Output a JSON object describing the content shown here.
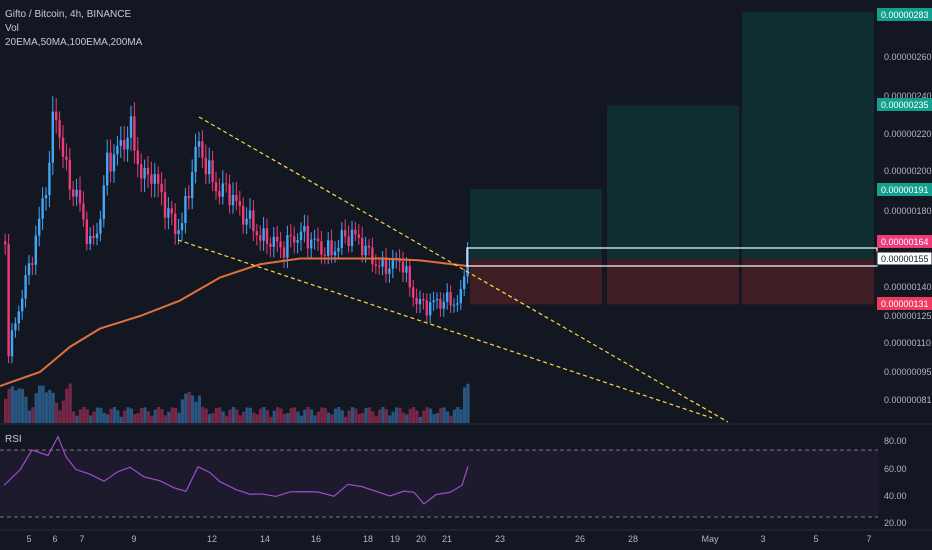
{
  "header": {
    "symbol": "Gifto / Bitcoin, 4h, BINANCE",
    "volume": "Vol",
    "indicators": "20EMA,50MA,100EMA,200MA"
  },
  "rsi": {
    "label": "RSI",
    "ticks": [
      "80.00",
      "60.00",
      "40.00",
      "20.00"
    ]
  },
  "colors": {
    "up": "#42a5f5",
    "down": "#ef3b77",
    "ma": "#e0703a",
    "trend": "#ffd740",
    "rsi": "#9c4dcc",
    "target": "#0f2e32",
    "stop": "#3f1d24",
    "target_label": "#14a08f",
    "stop_label": "#ef3b60"
  },
  "chart_data": {
    "type": "candlestick",
    "title": "Gifto / Bitcoin, 4h, BINANCE",
    "price_axis_ticks": [
      "0.00000260",
      "0.00000240",
      "0.00000220",
      "0.00000200",
      "0.00000180",
      "0.00000140",
      "0.00000125",
      "0.00000110",
      "0.00000095",
      "0.00000081"
    ],
    "x_ticks": [
      "5",
      "6",
      "7",
      "9",
      "12",
      "14",
      "16",
      "18",
      "19",
      "20",
      "21",
      "23",
      "26",
      "28",
      "May",
      "3",
      "5",
      "7"
    ],
    "price_labels": [
      {
        "text": "0.00000283",
        "kind": "target"
      },
      {
        "text": "0.00000235",
        "kind": "target"
      },
      {
        "text": "0.00000191",
        "kind": "target"
      },
      {
        "text": "0.00000164",
        "kind": "current"
      },
      {
        "text": "0.00000155",
        "kind": "entry"
      },
      {
        "text": "0.00000131",
        "kind": "stop"
      }
    ],
    "positions": [
      {
        "entry": 1.55e-06,
        "target": 1.91e-06,
        "stop": 1.31e-06
      },
      {
        "entry": 1.55e-06,
        "target": 2.35e-06,
        "stop": 1.31e-06
      },
      {
        "entry": 1.55e-06,
        "target": 2.83e-06,
        "stop": 1.31e-06
      }
    ],
    "ylim": [
      7.5e-07,
      2.85e-06
    ],
    "rsi_ylim": [
      20,
      90
    ],
    "grid": false
  }
}
